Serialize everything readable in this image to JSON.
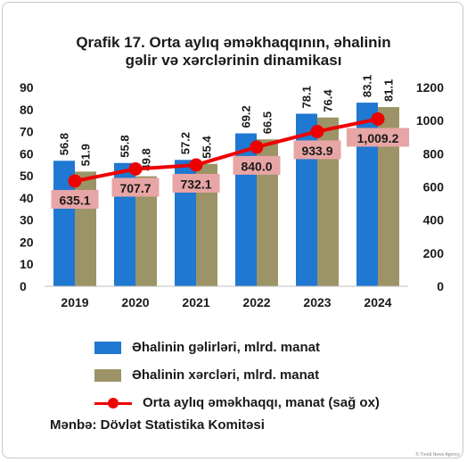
{
  "chart_data": {
    "type": "bar",
    "title": [
      "Qrafik 17. Orta aylıq əməkhaqqının, əhalinin",
      "gəlir və xərclərinin dinamikası"
    ],
    "categories": [
      "2019",
      "2020",
      "2021",
      "2022",
      "2023",
      "2024"
    ],
    "series": [
      {
        "name": "Əhalinin gəlirləri, mlrd. manat",
        "type": "bar",
        "axis": "left",
        "color": "#1f78d1",
        "values": [
          56.8,
          55.8,
          57.2,
          69.2,
          78.1,
          83.1
        ],
        "labels": [
          "56.8",
          "55.8",
          "57.2",
          "69.2",
          "78.1",
          "83.1"
        ]
      },
      {
        "name": "Əhalinin xərcləri, mlrd. manat",
        "type": "bar",
        "axis": "left",
        "color": "#9c9466",
        "values": [
          51.9,
          49.8,
          55.4,
          66.5,
          76.4,
          81.1
        ],
        "labels": [
          "51.9",
          "49.8",
          "55.4",
          "66.5",
          "76.4",
          "81.1"
        ]
      },
      {
        "name": "Orta aylıq əməkhaqqı, manat (sağ ox)",
        "type": "line",
        "axis": "right",
        "color": "#ee0000",
        "label_bg": "#e8a5a5",
        "values": [
          635.1,
          707.7,
          732.1,
          840.0,
          933.9,
          1009.2
        ],
        "labels": [
          "635.1",
          "707.7",
          "732.1",
          "840.0",
          "933.9",
          "1,009.2"
        ]
      }
    ],
    "y_left": {
      "min": 0,
      "max": 90,
      "ticks": [
        "0",
        "10",
        "20",
        "30",
        "40",
        "50",
        "60",
        "70",
        "80",
        "90"
      ]
    },
    "y_right": {
      "min": 0,
      "max": 1200,
      "ticks": [
        "0",
        "200",
        "400",
        "600",
        "800",
        "1000",
        "1200"
      ]
    },
    "grid": false,
    "legend_position": "bottom",
    "source": "Mənbə: Dövlət Statistika Komitəsi",
    "credit": "© Trend News Agency"
  }
}
